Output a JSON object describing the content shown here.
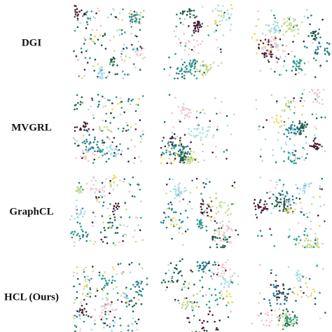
{
  "rows": [
    {
      "label": "DGI"
    },
    {
      "label": "MVGRL"
    },
    {
      "label": "GraphCL"
    },
    {
      "label": "HCL (Ours)"
    }
  ]
}
